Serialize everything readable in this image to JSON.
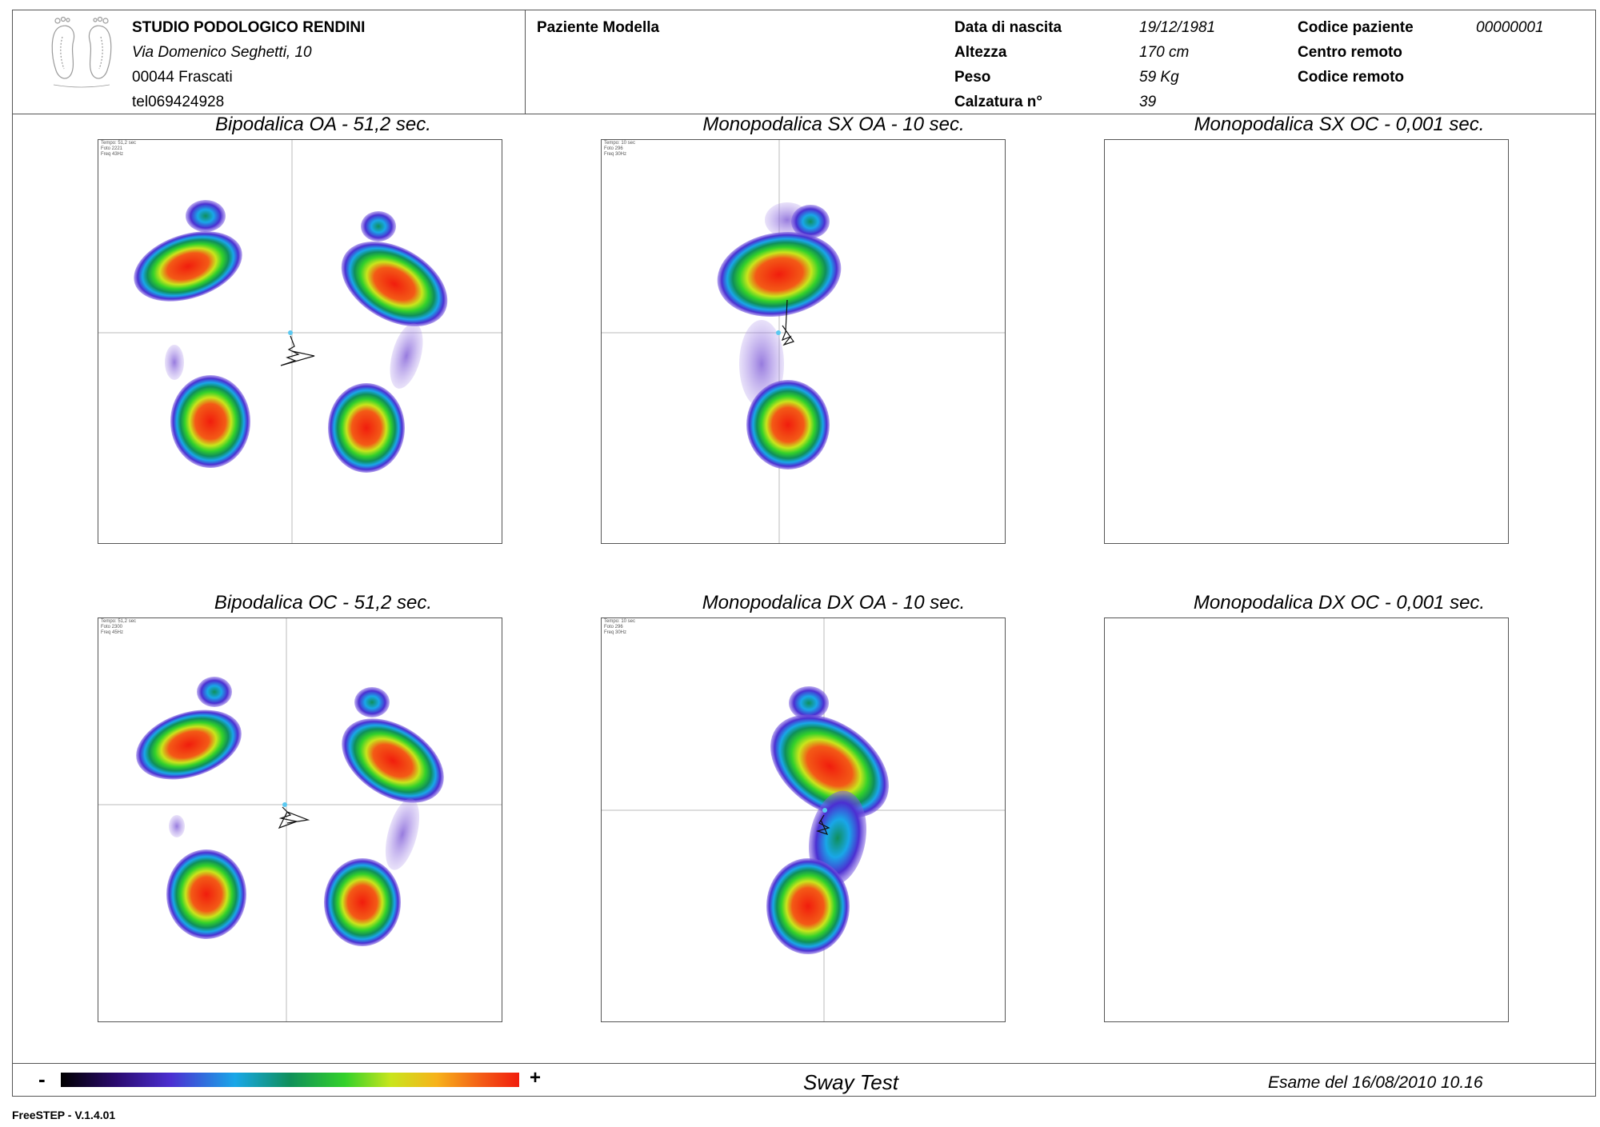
{
  "studio": {
    "name": "STUDIO PODOLOGICO RENDINI",
    "address": "Via Domenico Seghetti, 10",
    "city": "00044 Frascati",
    "phone": "tel069424928"
  },
  "patient": {
    "name": "Paziente Modella",
    "fields": [
      {
        "label": "Data di nascita",
        "value": "19/12/1981"
      },
      {
        "label": "Altezza",
        "value": "170 cm"
      },
      {
        "label": "Peso",
        "value": "59 Kg"
      },
      {
        "label": "Calzatura n°",
        "value": "39"
      }
    ],
    "code_label": "Codice paziente",
    "code_value": "00000001",
    "remote_center_label": "Centro remoto",
    "remote_code_label": "Codice remoto"
  },
  "panels": [
    {
      "title": "Bipodalica OA - 51,2 sec.",
      "stats": [
        "Tempo: 51,2 sec",
        "Foto 2221",
        "Freq 43Hz"
      ]
    },
    {
      "title": "Monopodalica SX OA - 10 sec.",
      "stats": [
        "Tempo: 10 sec",
        "Foto 296",
        "Freq 30Hz"
      ]
    },
    {
      "title": "Monopodalica SX OC - 0,001 sec.",
      "stats": []
    },
    {
      "title": "Bipodalica OC - 51,2 sec.",
      "stats": [
        "Tempo: 51,2 sec",
        "Foto 2300",
        "Freq 45Hz"
      ]
    },
    {
      "title": "Monopodalica DX OA - 10 sec.",
      "stats": [
        "Tempo: 10 sec",
        "Foto 296",
        "Freq 30Hz"
      ]
    },
    {
      "title": "Monopodalica DX OC - 0,001 sec.",
      "stats": []
    }
  ],
  "footer": {
    "scale_min": "-",
    "scale_max": "+",
    "test_name": "Sway Test",
    "exam_date": "Esame del 16/08/2010 10.16",
    "version": "FreeSTEP - V.1.4.01"
  },
  "colors": {
    "heat_low": "#2a0a6e",
    "heat_high": "#f11d0d",
    "border": "#555555",
    "cop_marker": "#5bc8f0"
  },
  "icons": [
    "feet-logo-icon"
  ]
}
